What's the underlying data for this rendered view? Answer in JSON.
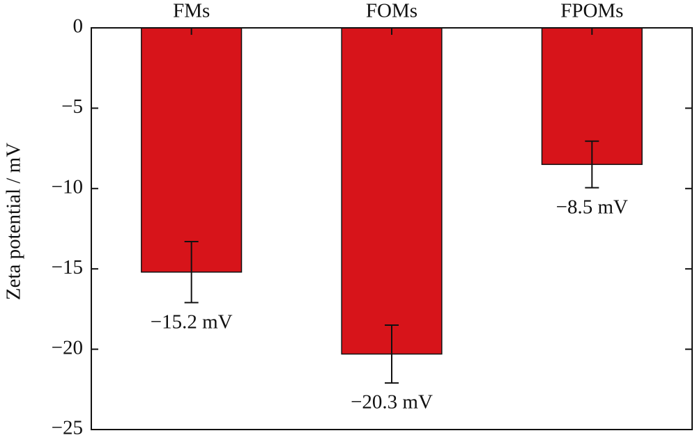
{
  "chart_data": {
    "type": "bar",
    "y_label": "Zeta potential / mV",
    "categories": [
      "FMs",
      "FOMs",
      "FPOMs"
    ],
    "values": [
      -15.2,
      -20.3,
      -8.5
    ],
    "errors": [
      1.9,
      1.8,
      1.45
    ],
    "value_labels": [
      "−15.2 mV",
      "−20.3 mV",
      "−8.5 mV"
    ],
    "color": "#d7141a",
    "ylim": [
      -25,
      0
    ],
    "yticks": [
      {
        "value": -25,
        "label": "−25"
      },
      {
        "value": -20,
        "label": "−20"
      },
      {
        "value": -15,
        "label": "−15"
      },
      {
        "value": -10,
        "label": "−10"
      },
      {
        "value": -5,
        "label": "−5"
      },
      0
    ]
  }
}
